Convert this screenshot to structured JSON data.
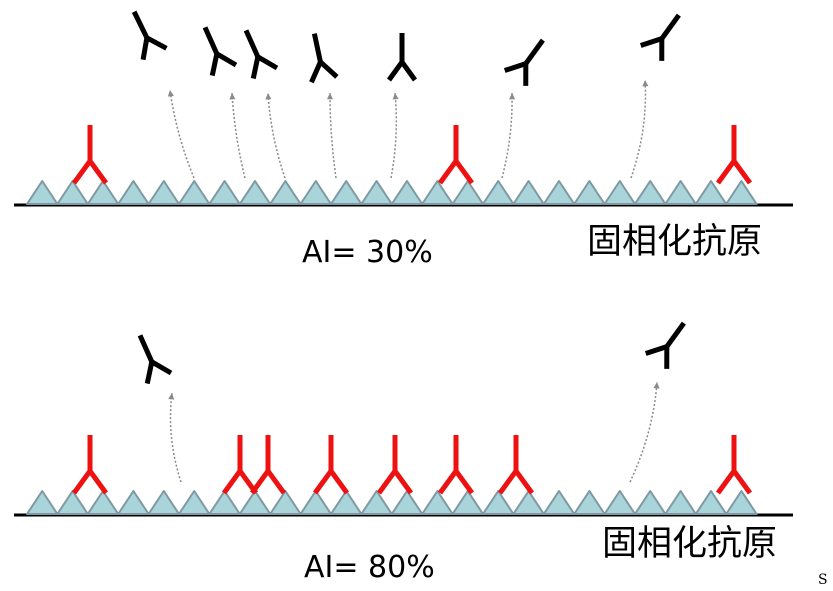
{
  "colors": {
    "antigen_fill": "#a9d4da",
    "antigen_stroke": "#7f99a3",
    "bound_antibody": "#ee1111",
    "free_antibody": "#000000",
    "dissociation_arrow": "#8a8a8a",
    "surface_line": "#000000"
  },
  "panels": [
    {
      "ai_label": "AI= 30%",
      "surface_label": "固相化抗原",
      "antigen_count": 24,
      "bound_antibodies": 3,
      "dissociated_antibodies": 7
    },
    {
      "ai_label": "AI= 80%",
      "surface_label": "固相化抗原",
      "antigen_count": 24,
      "bound_antibodies": 8,
      "dissociated_antibodies": 2
    }
  ],
  "corner_mark": "S"
}
